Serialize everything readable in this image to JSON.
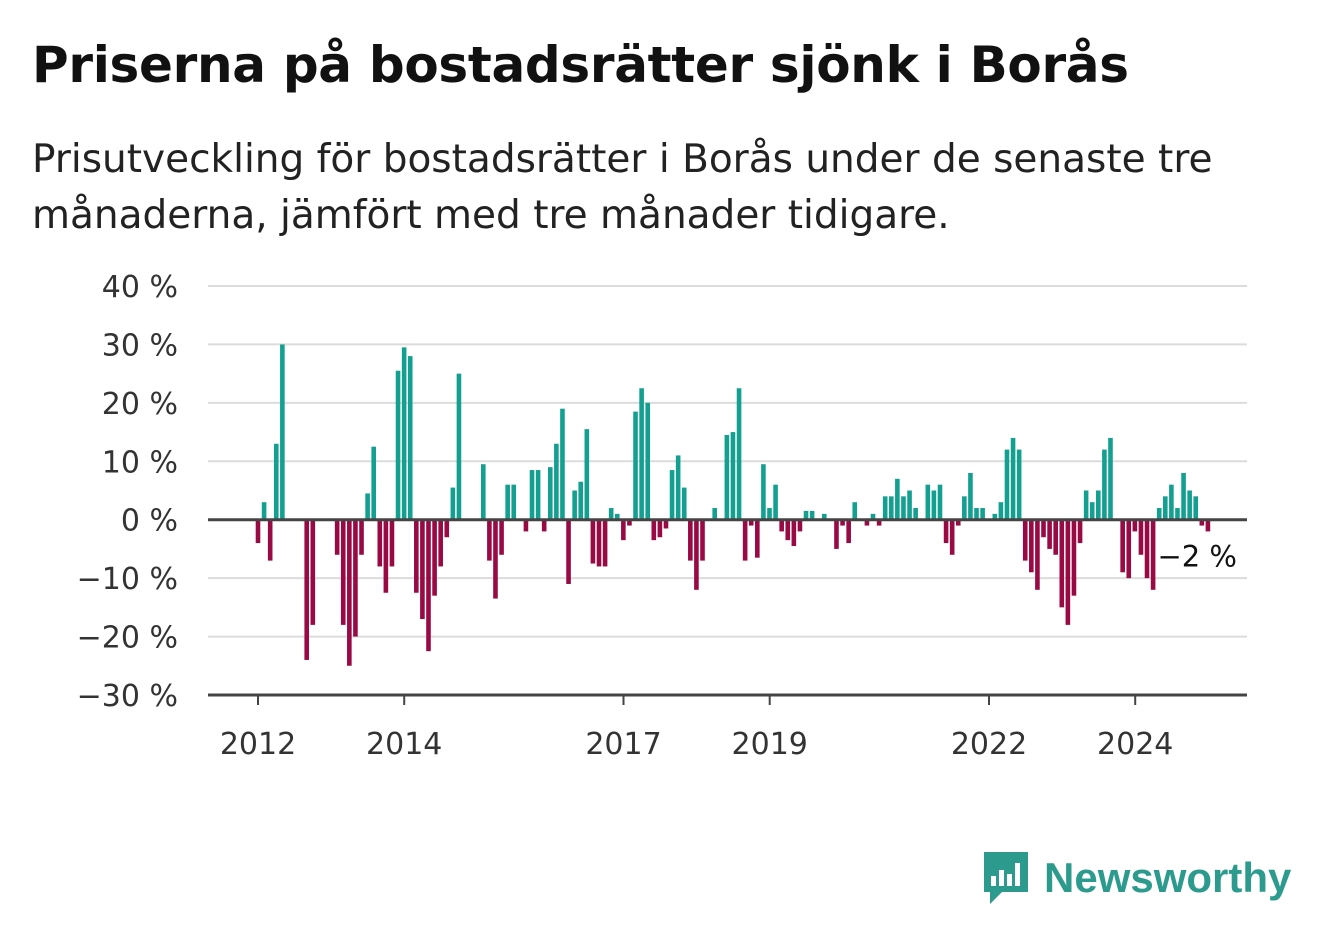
{
  "header": {
    "title": "Priserna på bostadsrätter sjönk i Borås",
    "subtitle": "Prisutveckling för bostadsrätter i Borås under de senaste tre månaderna, jämfört med tre månader tidigare."
  },
  "brand": {
    "name": "Newsworthy",
    "icon": "newsworthy-logo-icon",
    "color": "#2c9b8e"
  },
  "colors": {
    "positive": "#14a090",
    "negative": "#990a45",
    "grid": "#dcdcdc",
    "axis": "#444444"
  },
  "chart_data": {
    "type": "bar",
    "title": "Priserna på bostadsrätter sjönk i Borås",
    "subtitle": "Prisutveckling för bostadsrätter i Borås under de senaste tre månaderna, jämfört med tre månader tidigare.",
    "ylim": [
      -30,
      40
    ],
    "yticks": [
      40,
      30,
      20,
      10,
      0,
      -10,
      -20,
      -30
    ],
    "ytick_labels": [
      "40 %",
      "30 %",
      "20 %",
      "10 %",
      "0 %",
      "−10 %",
      "−20 %",
      "−30 %"
    ],
    "xticks": [
      {
        "label": "2012",
        "value": 2012
      },
      {
        "label": "2014",
        "value": 2014
      },
      {
        "label": "2017",
        "value": 2017
      },
      {
        "label": "2019",
        "value": 2019
      },
      {
        "label": "2022",
        "value": 2022
      },
      {
        "label": "2024",
        "value": 2024
      }
    ],
    "x_start": 2012,
    "x_step": 0.0833,
    "grid": true,
    "unit": "%",
    "last_value_label": "−2 %",
    "values": [
      -4,
      3,
      -7,
      13,
      30,
      0,
      0,
      0,
      -24,
      -18,
      0,
      0,
      0,
      -6,
      -18,
      -25,
      -20,
      -6,
      4.5,
      12.5,
      -8,
      -12.5,
      -8,
      25.5,
      29.5,
      28,
      -12.5,
      -17,
      -22.5,
      -13,
      -8,
      -3,
      5.5,
      25,
      0,
      0,
      0,
      9.5,
      -7,
      -13.5,
      -6,
      6,
      6,
      0,
      -2,
      8.5,
      8.5,
      -2,
      9,
      13,
      19,
      -11,
      5,
      6.5,
      15.5,
      -7.5,
      -8,
      -8,
      2,
      1,
      -3.5,
      -1,
      18.5,
      22.5,
      20,
      -3.5,
      -3,
      -1.5,
      8.5,
      11,
      5.5,
      -7,
      -12,
      -7,
      0,
      2,
      0,
      14.5,
      15,
      22.5,
      -7,
      -1,
      -6.5,
      9.5,
      2,
      6,
      -2,
      -3.5,
      -4.5,
      -2,
      1.5,
      1.5,
      0,
      1,
      0,
      -5,
      -1,
      -4,
      3,
      0,
      -1,
      1,
      -1,
      4,
      4,
      7,
      4,
      5,
      2,
      0,
      6,
      5,
      6,
      -4,
      -6,
      -1,
      4,
      8,
      2,
      2,
      0,
      1,
      3,
      12,
      14,
      12,
      -7,
      -9,
      -12,
      -3,
      -5,
      -6,
      -15,
      -18,
      -13,
      -4,
      5,
      3,
      5,
      12,
      14,
      0,
      -9,
      -10,
      -2,
      -6,
      -10,
      -12,
      2,
      4,
      6,
      2,
      8,
      5,
      4,
      -1,
      -2
    ]
  }
}
